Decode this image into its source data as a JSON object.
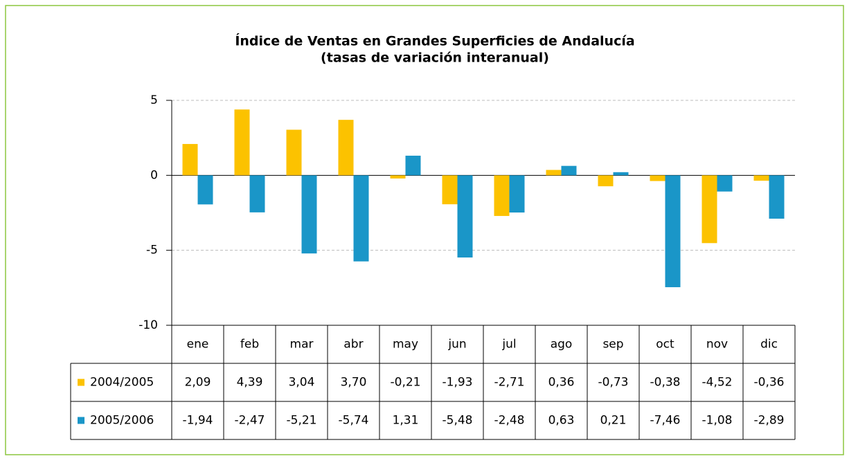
{
  "chart_data": {
    "type": "bar",
    "title": "Índice de Ventas en Grandes Superficies de Andalucía",
    "subtitle": "(tasas de variación interanual)",
    "categories": [
      "ene",
      "feb",
      "mar",
      "abr",
      "may",
      "jun",
      "jul",
      "ago",
      "sep",
      "oct",
      "nov",
      "dic"
    ],
    "series": [
      {
        "name": "2004/2005",
        "color": "#fcc200",
        "values": [
          2.09,
          4.39,
          3.04,
          3.7,
          -0.21,
          -1.93,
          -2.71,
          0.36,
          -0.73,
          -0.38,
          -4.52,
          -0.36
        ],
        "value_labels": [
          "2,09",
          "4,39",
          "3,04",
          "3,70",
          "-0,21",
          "-1,93",
          "-2,71",
          "0,36",
          "-0,73",
          "-0,38",
          "-4,52",
          "-0,36"
        ]
      },
      {
        "name": "2005/2006",
        "color": "#1a96c8",
        "values": [
          -1.94,
          -2.47,
          -5.21,
          -5.74,
          1.31,
          -5.48,
          -2.48,
          0.63,
          0.21,
          -7.46,
          -1.08,
          -2.89
        ],
        "value_labels": [
          "-1,94",
          "-2,47",
          "-5,21",
          "-5,74",
          "1,31",
          "-5,48",
          "-2,48",
          "0,63",
          "0,21",
          "-7,46",
          "-1,08",
          "-2,89"
        ]
      }
    ],
    "ylim": [
      -10,
      5
    ],
    "yticks": [
      -10,
      -5,
      0,
      5
    ],
    "grid": true
  }
}
